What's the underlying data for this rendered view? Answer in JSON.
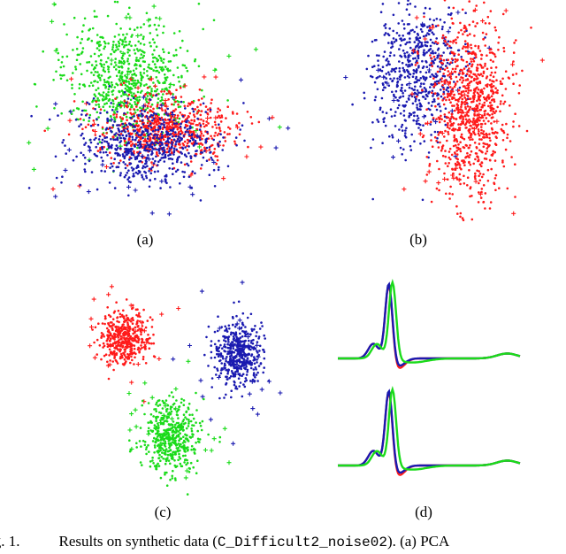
{
  "figure": {
    "panel_labels": [
      "(a)",
      "(b)",
      "(c)",
      "(d)"
    ],
    "caption": {
      "fig_number": "ig. 1.",
      "text_before": "Results on synthetic data (",
      "dataset": "C_Difficult2_noise02",
      "text_after": "). (a) PCA"
    }
  },
  "colors": {
    "red": "#ff1a1a",
    "green": "#1adb1a",
    "blue": "#1a1ab0"
  },
  "chart_data": [
    {
      "type": "scatter",
      "panel": "a",
      "markers": "dots for cluster members, plus signs for outliers",
      "series": [
        {
          "color": "green",
          "center": [
            0.38,
            0.35
          ],
          "spread": [
            0.12,
            0.13
          ],
          "count": 700
        },
        {
          "color": "red",
          "center": [
            0.52,
            0.58
          ],
          "spread": [
            0.12,
            0.07
          ],
          "count": 650
        },
        {
          "color": "blue",
          "center": [
            0.45,
            0.66
          ],
          "spread": [
            0.13,
            0.09
          ],
          "count": 600
        }
      ]
    },
    {
      "type": "scatter",
      "panel": "b",
      "markers": "dots for cluster members, plus signs for outliers",
      "series": [
        {
          "color": "blue",
          "center": [
            0.38,
            0.33
          ],
          "spread": [
            0.1,
            0.16
          ],
          "count": 600
        },
        {
          "color": "red",
          "center": [
            0.64,
            0.47
          ],
          "spread": [
            0.09,
            0.2
          ],
          "count": 900
        }
      ]
    },
    {
      "type": "scatter",
      "panel": "c",
      "markers": "dots for cluster members, plus signs for outliers",
      "series": [
        {
          "color": "red",
          "center": [
            0.33,
            0.29
          ],
          "spread": [
            0.05,
            0.06
          ],
          "count": 420
        },
        {
          "color": "blue",
          "center": [
            0.79,
            0.36
          ],
          "spread": [
            0.05,
            0.07
          ],
          "count": 460
        },
        {
          "color": "green",
          "center": [
            0.52,
            0.73
          ],
          "spread": [
            0.055,
            0.08
          ],
          "count": 480
        }
      ]
    },
    {
      "type": "line",
      "panel": "d",
      "description": "average spike waveforms of the three clusters, two repetitions (top and bottom)",
      "series": [
        {
          "color": "red",
          "peak_offset": 0.0,
          "trough_depth": 0.13,
          "width": 1.0
        },
        {
          "color": "blue",
          "peak_offset": 0.0,
          "trough_depth": 0.1,
          "width": 1.0
        },
        {
          "color": "green",
          "peak_offset": 0.02,
          "trough_depth": 0.05,
          "width": 2.2
        }
      ]
    }
  ]
}
